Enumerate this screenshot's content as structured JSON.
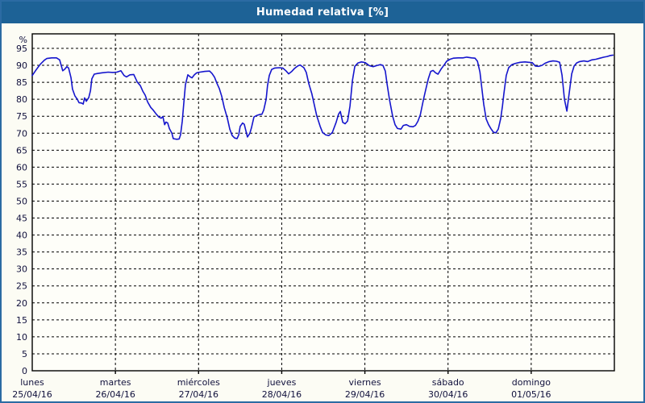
{
  "title": "Humedad relativa [%]",
  "colors": {
    "titlebar_bg": "#1d6296",
    "frame_border": "#2b6ba3",
    "page_bg": "#fcfcf4",
    "plot_bg": "#fefef9",
    "grid": "#000000",
    "axis": "#000000",
    "label_text": "#10103c",
    "line": "#1515cd",
    "title_text": "#ffffff"
  },
  "chart_data": {
    "type": "line",
    "title": "Humedad relativa [%]",
    "ylabel": "%",
    "xlabel": "",
    "ylim": [
      0,
      99.3
    ],
    "yticks": [
      0,
      5,
      10,
      15,
      20,
      25,
      30,
      35,
      40,
      45,
      50,
      55,
      60,
      65,
      70,
      75,
      80,
      85,
      90,
      95
    ],
    "grid": "dashed",
    "legend": "none",
    "x_days": [
      {
        "name": "lunes",
        "date": "25/04/16"
      },
      {
        "name": "martes",
        "date": "26/04/16"
      },
      {
        "name": "miércoles",
        "date": "27/04/16"
      },
      {
        "name": "jueves",
        "date": "28/04/16"
      },
      {
        "name": "viernes",
        "date": "29/04/16"
      },
      {
        "name": "sábado",
        "date": "30/04/16"
      },
      {
        "name": "domingo",
        "date": "01/05/16"
      }
    ],
    "x_unit": "hours_from_start",
    "x_range_hours": [
      0,
      168
    ],
    "series": [
      {
        "name": "Humedad relativa [%]",
        "color": "#1515cd",
        "points": [
          [
            0.0,
            87.0
          ],
          [
            1.2,
            88.8
          ],
          [
            2.3,
            90.3
          ],
          [
            3.5,
            91.5
          ],
          [
            4.2,
            92.0
          ],
          [
            5.6,
            92.2
          ],
          [
            7.0,
            92.2
          ],
          [
            7.9,
            91.6
          ],
          [
            8.8,
            88.4
          ],
          [
            9.3,
            88.8
          ],
          [
            10.0,
            89.6
          ],
          [
            10.5,
            89.2
          ],
          [
            11.2,
            86.3
          ],
          [
            11.6,
            83.0
          ],
          [
            12.3,
            81.0
          ],
          [
            13.0,
            80.0
          ],
          [
            13.5,
            79.0
          ],
          [
            14.2,
            78.9
          ],
          [
            14.7,
            78.6
          ],
          [
            15.1,
            80.4
          ],
          [
            15.6,
            79.4
          ],
          [
            16.3,
            80.5
          ],
          [
            16.8,
            82.5
          ],
          [
            17.2,
            86.0
          ],
          [
            17.9,
            87.4
          ],
          [
            18.8,
            87.6
          ],
          [
            20.2,
            87.8
          ],
          [
            21.9,
            88.0
          ],
          [
            23.3,
            87.9
          ],
          [
            24.4,
            88.0
          ],
          [
            25.6,
            88.4
          ],
          [
            26.5,
            87.0
          ],
          [
            27.2,
            86.6
          ],
          [
            28.2,
            87.2
          ],
          [
            29.3,
            87.3
          ],
          [
            30.3,
            85.1
          ],
          [
            31.2,
            84.0
          ],
          [
            31.9,
            82.4
          ],
          [
            32.6,
            81.2
          ],
          [
            33.3,
            79.2
          ],
          [
            34.2,
            77.6
          ],
          [
            34.9,
            76.8
          ],
          [
            35.8,
            75.6
          ],
          [
            36.5,
            74.8
          ],
          [
            37.2,
            74.4
          ],
          [
            37.7,
            74.9
          ],
          [
            38.2,
            72.5
          ],
          [
            38.6,
            73.3
          ],
          [
            39.1,
            73.0
          ],
          [
            39.6,
            71.3
          ],
          [
            40.3,
            70.0
          ],
          [
            40.7,
            68.4
          ],
          [
            41.7,
            68.2
          ],
          [
            42.4,
            68.3
          ],
          [
            42.8,
            69.5
          ],
          [
            43.3,
            73.6
          ],
          [
            43.7,
            78.4
          ],
          [
            44.2,
            84.3
          ],
          [
            44.9,
            87.2
          ],
          [
            45.6,
            86.6
          ],
          [
            46.1,
            86.3
          ],
          [
            46.8,
            87.2
          ],
          [
            47.5,
            87.8
          ],
          [
            48.4,
            88.0
          ],
          [
            49.8,
            88.2
          ],
          [
            51.2,
            88.3
          ],
          [
            51.9,
            87.6
          ],
          [
            52.6,
            86.5
          ],
          [
            53.3,
            84.7
          ],
          [
            54.0,
            83.1
          ],
          [
            54.7,
            80.8
          ],
          [
            55.4,
            77.6
          ],
          [
            56.3,
            74.4
          ],
          [
            57.0,
            71.2
          ],
          [
            57.7,
            69.3
          ],
          [
            58.4,
            68.6
          ],
          [
            59.1,
            68.4
          ],
          [
            59.6,
            69.5
          ],
          [
            60.0,
            72.0
          ],
          [
            60.7,
            73.0
          ],
          [
            61.2,
            72.6
          ],
          [
            61.7,
            70.5
          ],
          [
            62.1,
            68.9
          ],
          [
            62.8,
            70.0
          ],
          [
            63.3,
            71.7
          ],
          [
            64.0,
            74.8
          ],
          [
            64.7,
            75.2
          ],
          [
            65.6,
            75.5
          ],
          [
            66.3,
            75.6
          ],
          [
            66.8,
            76.8
          ],
          [
            67.5,
            80.0
          ],
          [
            67.9,
            84.0
          ],
          [
            68.4,
            87.0
          ],
          [
            69.1,
            88.8
          ],
          [
            70.0,
            89.2
          ],
          [
            71.2,
            89.3
          ],
          [
            72.3,
            89.2
          ],
          [
            73.3,
            88.3
          ],
          [
            74.0,
            87.5
          ],
          [
            74.9,
            88.2
          ],
          [
            75.6,
            89.0
          ],
          [
            76.6,
            89.8
          ],
          [
            77.3,
            90.1
          ],
          [
            78.4,
            89.3
          ],
          [
            79.1,
            87.9
          ],
          [
            79.8,
            84.7
          ],
          [
            80.7,
            81.6
          ],
          [
            81.4,
            78.4
          ],
          [
            82.1,
            75.2
          ],
          [
            83.1,
            72.0
          ],
          [
            83.8,
            70.2
          ],
          [
            84.7,
            69.5
          ],
          [
            85.6,
            69.3
          ],
          [
            86.6,
            70.2
          ],
          [
            87.7,
            73.2
          ],
          [
            88.4,
            75.6
          ],
          [
            88.9,
            76.4
          ],
          [
            89.6,
            73.2
          ],
          [
            90.3,
            72.8
          ],
          [
            91.0,
            73.6
          ],
          [
            91.7,
            78.0
          ],
          [
            92.4,
            85.5
          ],
          [
            93.1,
            89.7
          ],
          [
            94.0,
            90.7
          ],
          [
            95.0,
            91.0
          ],
          [
            96.1,
            90.8
          ],
          [
            97.3,
            89.9
          ],
          [
            98.4,
            89.6
          ],
          [
            99.6,
            90.0
          ],
          [
            100.5,
            90.2
          ],
          [
            101.2,
            90.0
          ],
          [
            101.9,
            88.3
          ],
          [
            102.4,
            84.5
          ],
          [
            103.1,
            79.9
          ],
          [
            104.0,
            75.0
          ],
          [
            104.7,
            72.5
          ],
          [
            105.4,
            71.4
          ],
          [
            106.4,
            71.2
          ],
          [
            107.1,
            72.3
          ],
          [
            108.0,
            72.5
          ],
          [
            108.9,
            72.0
          ],
          [
            109.9,
            71.9
          ],
          [
            110.6,
            72.3
          ],
          [
            111.3,
            73.5
          ],
          [
            112.0,
            75.4
          ],
          [
            112.9,
            79.9
          ],
          [
            113.6,
            83.0
          ],
          [
            114.3,
            86.0
          ],
          [
            115.0,
            88.2
          ],
          [
            115.7,
            88.5
          ],
          [
            116.4,
            87.8
          ],
          [
            117.1,
            87.4
          ],
          [
            118.0,
            88.9
          ],
          [
            119.0,
            90.3
          ],
          [
            119.6,
            91.2
          ],
          [
            120.6,
            91.8
          ],
          [
            121.5,
            92.1
          ],
          [
            122.9,
            92.2
          ],
          [
            124.3,
            92.2
          ],
          [
            125.4,
            92.4
          ],
          [
            126.8,
            92.2
          ],
          [
            127.8,
            92.1
          ],
          [
            128.5,
            91.2
          ],
          [
            129.2,
            88.0
          ],
          [
            129.6,
            84.5
          ],
          [
            130.3,
            78.5
          ],
          [
            131.0,
            74.2
          ],
          [
            131.7,
            72.5
          ],
          [
            132.4,
            71.3
          ],
          [
            133.1,
            70.3
          ],
          [
            133.8,
            70.1
          ],
          [
            134.5,
            71.2
          ],
          [
            135.2,
            74.3
          ],
          [
            135.7,
            78.0
          ],
          [
            136.1,
            81.5
          ],
          [
            136.8,
            87.0
          ],
          [
            137.5,
            89.3
          ],
          [
            138.4,
            90.2
          ],
          [
            139.6,
            90.6
          ],
          [
            140.8,
            90.9
          ],
          [
            142.2,
            91.0
          ],
          [
            143.3,
            90.9
          ],
          [
            144.3,
            90.8
          ],
          [
            145.2,
            89.8
          ],
          [
            146.1,
            89.7
          ],
          [
            147.1,
            90.0
          ],
          [
            148.0,
            90.6
          ],
          [
            149.2,
            91.1
          ],
          [
            150.3,
            91.3
          ],
          [
            151.3,
            91.2
          ],
          [
            152.2,
            90.9
          ],
          [
            152.9,
            87.1
          ],
          [
            153.6,
            80.0
          ],
          [
            154.3,
            76.5
          ],
          [
            155.0,
            82.0
          ],
          [
            155.7,
            87.5
          ],
          [
            156.4,
            89.8
          ],
          [
            157.1,
            90.7
          ],
          [
            158.0,
            91.1
          ],
          [
            159.2,
            91.3
          ],
          [
            160.3,
            91.1
          ],
          [
            161.5,
            91.6
          ],
          [
            162.7,
            91.8
          ],
          [
            163.8,
            92.1
          ],
          [
            165.0,
            92.4
          ],
          [
            165.9,
            92.6
          ],
          [
            166.9,
            92.9
          ],
          [
            167.6,
            93.0
          ]
        ]
      }
    ]
  }
}
